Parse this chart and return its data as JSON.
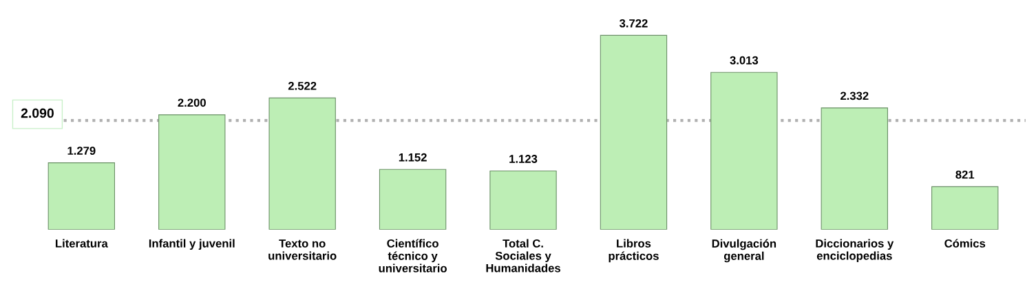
{
  "chart_data": {
    "type": "bar",
    "categories": [
      "Literatura",
      "Infantil y juvenil",
      "Texto no\nuniversitario",
      "Científico\ntécnico y\nuniversitario",
      "Total C.\nSociales y\nHumanidades",
      "Libros\nprácticos",
      "Divulgación\ngeneral",
      "Diccionarios y\nenciclopedias",
      "Cómics"
    ],
    "values": [
      1279,
      2200,
      2522,
      1152,
      1123,
      3722,
      3013,
      2332,
      821
    ],
    "value_labels": [
      "1.279",
      "2.200",
      "2.522",
      "1.152",
      "1.123",
      "3.722",
      "3.013",
      "2.332",
      "821"
    ],
    "color": "#bdeeb5",
    "ref_lines": [
      {
        "axis": "y",
        "value": 2090,
        "label": "2.090",
        "color": "#b0b0b0",
        "line_style": "dotted"
      }
    ],
    "grid": false,
    "legend": false
  }
}
